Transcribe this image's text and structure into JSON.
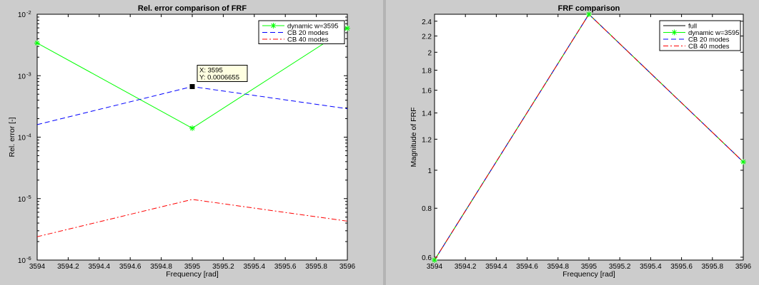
{
  "chart_data": [
    {
      "type": "line",
      "title": "Rel. error comparison of FRF",
      "xlabel": "Frequency [rad]",
      "ylabel": "Rel. error [-]",
      "xlim": [
        3594,
        3596
      ],
      "ylim": [
        1e-06,
        0.01
      ],
      "yscale": "log",
      "grid": false,
      "legend": "top-right",
      "x_ticks": [
        "3594",
        "3594.2",
        "3594.4",
        "3594.6",
        "3594.8",
        "3595",
        "3595.2",
        "3595.4",
        "3595.6",
        "3595.8",
        "3596"
      ],
      "y_ticks": [
        {
          "base": "10",
          "exp": "-6"
        },
        {
          "base": "10",
          "exp": "-5"
        },
        {
          "base": "10",
          "exp": "-4"
        },
        {
          "base": "10",
          "exp": "-3"
        },
        {
          "base": "10",
          "exp": "-2"
        }
      ],
      "series": [
        {
          "name": "dynamic w=3595",
          "color": "#00ff00",
          "style": "solid",
          "marker": "asterisk",
          "x": [
            3594,
            3595,
            3596
          ],
          "y": [
            0.0034,
            0.00014,
            0.0059
          ]
        },
        {
          "name": "CB 20 modes",
          "color": "#0000ff",
          "style": "dashed",
          "marker": "none",
          "x": [
            3594,
            3595,
            3596
          ],
          "y": [
            0.00016,
            0.0006655,
            0.00029
          ]
        },
        {
          "name": "CB 40 modes",
          "color": "#ff0000",
          "style": "dashdot",
          "marker": "none",
          "x": [
            3594,
            3595,
            3596
          ],
          "y": [
            2.4e-06,
            9.7e-06,
            4.3e-06
          ]
        }
      ],
      "annotation": {
        "x": 3595,
        "y": 0.0006655,
        "line1": "X: 3595",
        "line2": "Y: 0.0006655"
      }
    },
    {
      "type": "line",
      "title": "FRF comparison",
      "xlabel": "Frequency [rad]",
      "ylabel": "Magnitude of FRF",
      "xlim": [
        3594,
        3596
      ],
      "ylim": [
        0.59,
        2.5
      ],
      "yscale": "log",
      "grid": false,
      "legend": "top-right",
      "x_ticks": [
        "3594",
        "3594.2",
        "3594.4",
        "3594.6",
        "3594.8",
        "3595",
        "3595.2",
        "3595.4",
        "3595.6",
        "3595.8",
        "3596"
      ],
      "y_ticks": [
        "0.6",
        "0.8",
        "1",
        "1.2",
        "1.4",
        "1.6",
        "1.8",
        "2",
        "2.2",
        "2.4"
      ],
      "series": [
        {
          "name": "full",
          "color": "#000000",
          "style": "solid",
          "marker": "none",
          "x": [
            3594,
            3595,
            3596
          ],
          "y": [
            0.59,
            2.5,
            1.05
          ]
        },
        {
          "name": "dynamic w=3595",
          "color": "#00ff00",
          "style": "solid",
          "marker": "asterisk",
          "x": [
            3594,
            3595,
            3596
          ],
          "y": [
            0.59,
            2.5,
            1.05
          ]
        },
        {
          "name": "CB 20 modes",
          "color": "#0000ff",
          "style": "dashed",
          "marker": "none",
          "x": [
            3594,
            3595,
            3596
          ],
          "y": [
            0.59,
            2.5,
            1.05
          ]
        },
        {
          "name": "CB 40 modes",
          "color": "#ff0000",
          "style": "dashdot",
          "marker": "none",
          "x": [
            3594,
            3595,
            3596
          ],
          "y": [
            0.59,
            2.5,
            1.05
          ]
        }
      ]
    }
  ]
}
